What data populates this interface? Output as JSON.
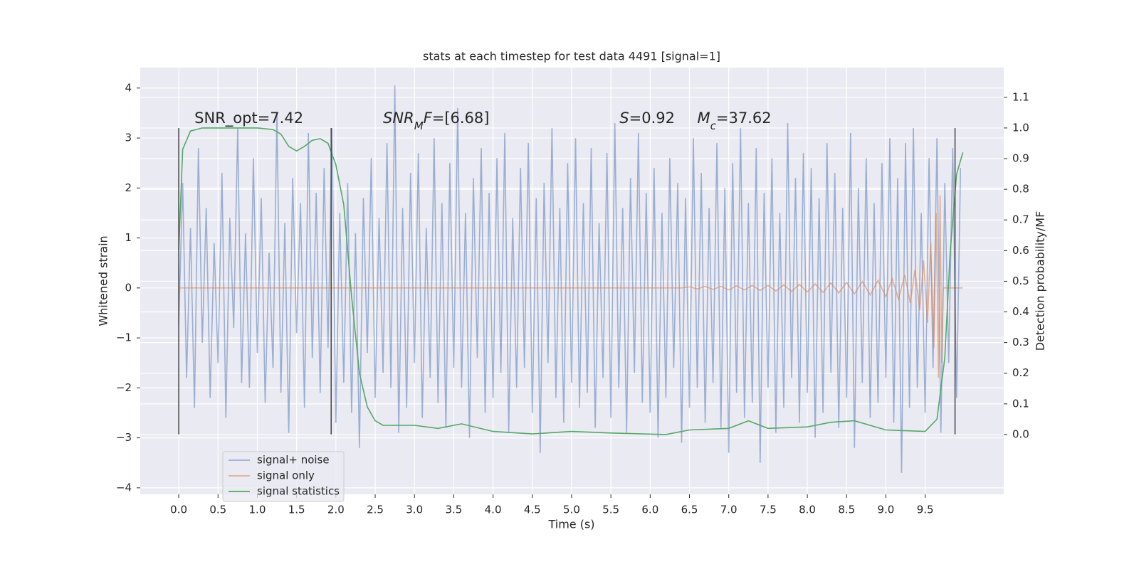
{
  "chart_data": {
    "type": "line",
    "title": "stats at each timestep for test data 4491 [signal=1]",
    "xlabel": "Time (s)",
    "ylabel": "Whitened strain",
    "y2label": "Detection probability/MF",
    "xlim": [
      -0.49,
      10.5
    ],
    "ylim": [
      -4.13,
      4.41
    ],
    "y2lim": [
      -0.195,
      1.197
    ],
    "xticks": [
      {
        "value": 0,
        "label": "0.0"
      },
      0.5,
      {
        "value": 1,
        "label": "1.0"
      },
      1.5,
      {
        "value": 2,
        "label": "2.0"
      },
      2.5,
      {
        "value": 3,
        "label": "3.0"
      },
      3.5,
      {
        "value": 4,
        "label": "4.0"
      },
      4.5,
      {
        "value": 5,
        "label": "5.0"
      },
      5.5,
      {
        "value": 6,
        "label": "6.0"
      },
      6.5,
      {
        "value": 7,
        "label": "7.0"
      },
      7.5,
      {
        "value": 8,
        "label": "8.0"
      },
      8.5,
      {
        "value": 9,
        "label": "9.0"
      },
      9.5
    ],
    "yticks": [
      {
        "value": -4,
        "label": "−4"
      },
      {
        "value": -3,
        "label": "−3"
      },
      {
        "value": -2,
        "label": "−2"
      },
      {
        "value": -1,
        "label": "−1"
      },
      0,
      1,
      2,
      3,
      4
    ],
    "y2ticks": [
      {
        "value": 0,
        "label": "0.0"
      },
      0.1,
      0.2,
      0.3,
      0.4,
      0.5,
      0.6,
      0.7,
      0.8,
      0.9,
      {
        "value": 1,
        "label": "1.0"
      },
      1.1
    ],
    "grid": true,
    "legend": "lower left",
    "vlines": [
      0,
      1.94,
      9.88
    ],
    "vline_range": [
      -2.93,
      3.2
    ],
    "vline_color": "#444444",
    "annotations": [
      {
        "x": 0.2,
        "y": 3.3,
        "parts": [
          {
            "text": "SNR_opt=7.42"
          }
        ]
      },
      {
        "x": 2.6,
        "y": 3.3,
        "parts": [
          {
            "text": "SNR",
            "italic": true
          },
          {
            "text": "M",
            "italic": true,
            "sub": true
          },
          {
            "text": "F",
            "italic": true
          },
          {
            "text": "=[6.68]"
          }
        ]
      },
      {
        "x": 5.61,
        "y": 3.3,
        "parts": [
          {
            "text": "S",
            "italic": true
          },
          {
            "text": "=0.92"
          }
        ]
      },
      {
        "x": 6.6,
        "y": 3.3,
        "parts": [
          {
            "text": "M",
            "italic": true
          },
          {
            "text": "c",
            "italic": true,
            "sub": true
          },
          {
            "text": "=37.62"
          }
        ]
      }
    ],
    "series": [
      {
        "name": "signal+ noise",
        "color": "#4c72b0",
        "opacity": 0.5,
        "x": [
          0,
          0.05,
          0.1,
          0.15,
          0.2,
          0.25,
          0.3,
          0.35,
          0.4,
          0.45,
          0.5,
          0.55,
          0.6,
          0.65,
          0.7,
          0.75,
          0.8,
          0.85,
          0.9,
          0.95,
          1,
          1.05,
          1.1,
          1.15,
          1.2,
          1.25,
          1.3,
          1.35,
          1.4,
          1.45,
          1.5,
          1.55,
          1.6,
          1.65,
          1.7,
          1.75,
          1.8,
          1.85,
          1.9,
          1.95,
          2,
          2.05,
          2.1,
          2.15,
          2.2,
          2.25,
          2.3,
          2.35,
          2.4,
          2.45,
          2.5,
          2.55,
          2.6,
          2.65,
          2.7,
          2.75,
          2.8,
          2.85,
          2.9,
          2.95,
          3,
          3.05,
          3.1,
          3.15,
          3.2,
          3.25,
          3.3,
          3.35,
          3.4,
          3.45,
          3.5,
          3.55,
          3.6,
          3.65,
          3.7,
          3.75,
          3.8,
          3.85,
          3.9,
          3.95,
          4,
          4.05,
          4.1,
          4.15,
          4.2,
          4.25,
          4.3,
          4.35,
          4.4,
          4.45,
          4.5,
          4.55,
          4.6,
          4.65,
          4.7,
          4.75,
          4.8,
          4.85,
          4.9,
          4.95,
          5,
          5.05,
          5.1,
          5.15,
          5.2,
          5.25,
          5.3,
          5.35,
          5.4,
          5.45,
          5.5,
          5.55,
          5.6,
          5.65,
          5.7,
          5.75,
          5.8,
          5.85,
          5.9,
          5.95,
          6,
          6.05,
          6.1,
          6.15,
          6.2,
          6.25,
          6.3,
          6.35,
          6.4,
          6.45,
          6.5,
          6.55,
          6.6,
          6.65,
          6.7,
          6.75,
          6.8,
          6.85,
          6.9,
          6.95,
          7,
          7.05,
          7.1,
          7.15,
          7.2,
          7.25,
          7.3,
          7.35,
          7.4,
          7.45,
          7.5,
          7.55,
          7.6,
          7.65,
          7.7,
          7.75,
          7.8,
          7.85,
          7.9,
          7.95,
          8,
          8.05,
          8.1,
          8.15,
          8.2,
          8.25,
          8.3,
          8.35,
          8.4,
          8.45,
          8.5,
          8.55,
          8.6,
          8.65,
          8.7,
          8.75,
          8.8,
          8.85,
          8.9,
          8.95,
          9,
          9.05,
          9.1,
          9.15,
          9.2,
          9.25,
          9.3,
          9.35,
          9.4,
          9.45,
          9.5,
          9.55,
          9.6,
          9.65,
          9.7,
          9.75,
          9.8,
          9.85,
          9.9,
          9.95
        ],
        "values": [
          -0.7,
          2.1,
          -1.8,
          1.2,
          -2.4,
          2.8,
          -1.1,
          1.6,
          -2.2,
          0.9,
          -1.5,
          2.3,
          -2.6,
          1.4,
          -0.8,
          3.2,
          -1.9,
          1.1,
          -2.0,
          2.6,
          -1.3,
          1.8,
          -2.3,
          0.7,
          -1.6,
          3.5,
          -2.1,
          1.3,
          -2.9,
          2.2,
          -0.9,
          1.7,
          -2.4,
          3.1,
          -1.4,
          1.9,
          -2.1,
          2.4,
          -1.2,
          3.2,
          -2.7,
          1.5,
          -1.9,
          2.1,
          -2.5,
          1.1,
          -3.2,
          1.8,
          -1.3,
          2.6,
          -2.2,
          1.4,
          -1.7,
          2.9,
          -2.0,
          4.05,
          -2.9,
          1.6,
          -2.4,
          2.3,
          -1.5,
          2.7,
          -2.6,
          1.2,
          -1.8,
          3.0,
          -2.3,
          1.7,
          -2.8,
          2.5,
          -1.6,
          3.6,
          -2.0,
          1.5,
          -3.0,
          2.2,
          -1.4,
          2.8,
          -2.5,
          1.9,
          -2.2,
          2.6,
          -1.7,
          3.1,
          -2.9,
          1.4,
          -2.0,
          2.4,
          -1.6,
          2.9,
          -2.5,
          1.8,
          -3.3,
          2.1,
          -1.5,
          3.2,
          -2.2,
          1.6,
          -2.7,
          2.5,
          -1.9,
          3.0,
          -2.4,
          1.7,
          -2.1,
          2.8,
          -2.8,
          1.3,
          -1.8,
          2.7,
          -2.6,
          3.3,
          -2.0,
          1.6,
          -2.9,
          2.2,
          -1.7,
          3.1,
          -2.3,
          1.9,
          -2.5,
          2.4,
          -3.0,
          1.5,
          -2.2,
          2.6,
          -1.6,
          2.1,
          -3.1,
          1.8,
          -2.4,
          3.0,
          -2.0,
          2.3,
          -2.7,
          1.6,
          -1.9,
          2.9,
          -2.8,
          2.0,
          -3.3,
          2.5,
          -2.1,
          3.2,
          -2.6,
          1.7,
          -2.3,
          2.8,
          -3.5,
          1.9,
          -2.0,
          2.6,
          -2.9,
          1.5,
          -2.4,
          3.3,
          -1.8,
          2.2,
          -2.7,
          2.7,
          -2.1,
          2.4,
          -3.0,
          1.8,
          -2.5,
          2.9,
          -1.7,
          2.3,
          -2.8,
          1.6,
          -2.2,
          3.1,
          -3.2,
          2.0,
          -1.9,
          2.6,
          -2.6,
          1.7,
          -2.3,
          2.5,
          -1.8,
          3.0,
          -2.7,
          2.2,
          -3.7,
          2.9,
          -2.4,
          3.2,
          -2.0,
          1.5,
          -2.5,
          2.6,
          -1.6,
          3.0,
          -2.9,
          2.1,
          -1.5,
          2.8,
          -2.2,
          2.4
        ]
      },
      {
        "name": "signal only",
        "color": "#dd8452",
        "opacity": 0.6,
        "x": [
          0,
          6.4,
          6.5,
          6.6,
          6.7,
          6.8,
          6.9,
          7.0,
          7.1,
          7.2,
          7.3,
          7.4,
          7.5,
          7.6,
          7.7,
          7.8,
          7.9,
          8.0,
          8.1,
          8.2,
          8.3,
          8.4,
          8.5,
          8.6,
          8.7,
          8.8,
          8.9,
          9.0,
          9.08,
          9.16,
          9.24,
          9.31,
          9.37,
          9.43,
          9.48,
          9.53,
          9.57,
          9.61,
          9.64,
          9.67,
          9.69,
          9.71,
          9.73,
          9.98
        ],
        "values": [
          0,
          0,
          0.02,
          -0.02,
          0.03,
          -0.03,
          0.03,
          -0.04,
          0.04,
          -0.04,
          0.05,
          -0.05,
          0.05,
          -0.06,
          0.06,
          -0.07,
          0.07,
          -0.08,
          0.08,
          -0.09,
          0.1,
          -0.1,
          0.11,
          -0.12,
          0.13,
          -0.14,
          0.15,
          -0.17,
          0.19,
          -0.22,
          0.26,
          -0.3,
          0.36,
          -0.44,
          0.55,
          -0.7,
          0.9,
          -1.2,
          1.5,
          -1.8,
          1.85,
          -1.5,
          0,
          0
        ]
      },
      {
        "name": "signal statistics",
        "color": "#55a868",
        "opacity": 1,
        "axis": "y2",
        "x": [
          0,
          0.05,
          0.15,
          0.3,
          1.0,
          1.2,
          1.3,
          1.4,
          1.5,
          1.6,
          1.7,
          1.8,
          1.9,
          2.0,
          2.1,
          2.2,
          2.3,
          2.4,
          2.5,
          2.6,
          3.0,
          3.3,
          3.6,
          4.0,
          4.5,
          5.0,
          5.5,
          6.2,
          6.5,
          7.0,
          7.25,
          7.5,
          8.0,
          8.3,
          8.6,
          9.0,
          9.5,
          9.65,
          9.75,
          9.82,
          9.9,
          9.98
        ],
        "values": [
          0.6,
          0.93,
          0.99,
          1.0,
          1.0,
          0.995,
          0.98,
          0.94,
          0.925,
          0.94,
          0.96,
          0.965,
          0.95,
          0.88,
          0.75,
          0.45,
          0.2,
          0.09,
          0.045,
          0.03,
          0.03,
          0.02,
          0.035,
          0.01,
          0.002,
          0.01,
          0.005,
          0.0,
          0.015,
          0.02,
          0.045,
          0.02,
          0.025,
          0.04,
          0.045,
          0.015,
          0.01,
          0.05,
          0.25,
          0.6,
          0.85,
          0.92
        ]
      }
    ]
  }
}
